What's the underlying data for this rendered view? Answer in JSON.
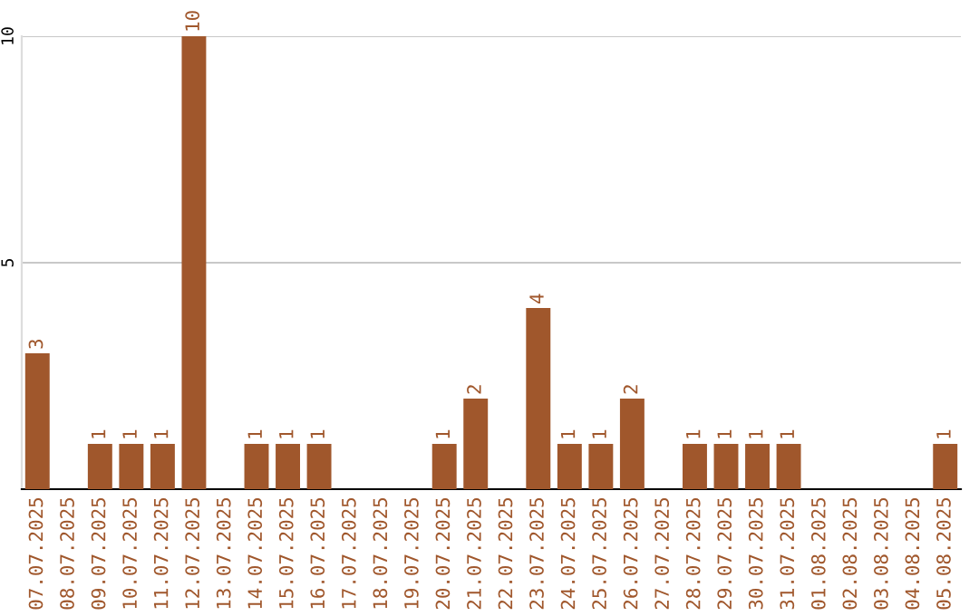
{
  "chart_data": {
    "type": "bar",
    "categories": [
      "07.07.2025",
      "08.07.2025",
      "09.07.2025",
      "10.07.2025",
      "11.07.2025",
      "12.07.2025",
      "13.07.2025",
      "14.07.2025",
      "15.07.2025",
      "16.07.2025",
      "17.07.2025",
      "18.07.2025",
      "19.07.2025",
      "20.07.2025",
      "21.07.2025",
      "22.07.2025",
      "23.07.2025",
      "24.07.2025",
      "25.07.2025",
      "26.07.2025",
      "27.07.2025",
      "28.07.2025",
      "29.07.2025",
      "30.07.2025",
      "31.07.2025",
      "01.08.2025",
      "02.08.2025",
      "03.08.2025",
      "04.08.2025",
      "05.08.2025"
    ],
    "values": [
      3,
      0,
      1,
      1,
      1,
      10,
      0,
      1,
      1,
      1,
      0,
      0,
      0,
      1,
      2,
      0,
      4,
      1,
      1,
      2,
      0,
      1,
      1,
      1,
      1,
      0,
      0,
      0,
      0,
      1
    ],
    "value_labels": [
      "3",
      null,
      "1",
      "1",
      "1",
      "10",
      null,
      "1",
      "1",
      "1",
      null,
      null,
      null,
      "1",
      "2",
      null,
      "4",
      "1",
      "1",
      "2",
      null,
      "1",
      "1",
      "1",
      "1",
      null,
      null,
      null,
      null,
      "1"
    ],
    "color": "#a0572c",
    "ylim": [
      0,
      10
    ],
    "yticks": [
      5,
      10
    ],
    "grid": "y",
    "legend": false
  }
}
